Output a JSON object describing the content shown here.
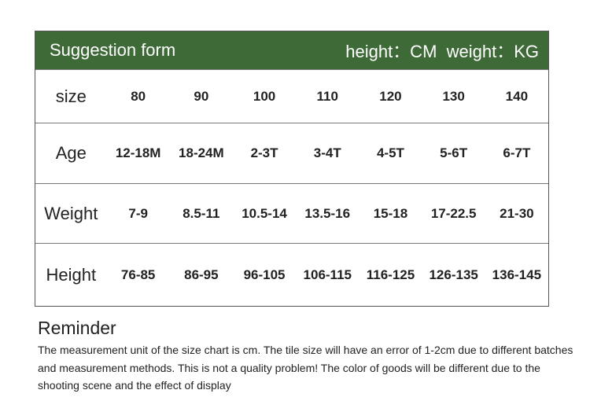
{
  "header": {
    "title": "Suggestion form",
    "units": "height：CM  weight：KG",
    "color": "#3e6a38"
  },
  "rows": [
    {
      "label": "size",
      "values": [
        "80",
        "90",
        "100",
        "110",
        "120",
        "130",
        "140"
      ]
    },
    {
      "label": "Age",
      "values": [
        "12-18M",
        "18-24M",
        "2-3T",
        "3-4T",
        "4-5T",
        "5-6T",
        "6-7T"
      ]
    },
    {
      "label": "Weight",
      "values": [
        "7-9",
        "8.5-11",
        "10.5-14",
        "13.5-16",
        "15-18",
        "17-22.5",
        "21-30"
      ]
    },
    {
      "label": "Height",
      "values": [
        "76-85",
        "86-95",
        "96-105",
        "106-115",
        "116-125",
        "126-135",
        "136-145"
      ]
    }
  ],
  "reminder": {
    "title": "Reminder",
    "body": "The measurement unit of the size chart is cm. The tile size will have an error of 1-2cm due to different batches and measurement methods. This is not a quality problem! The color of goods will be different due to the shooting scene and the effect of display"
  }
}
